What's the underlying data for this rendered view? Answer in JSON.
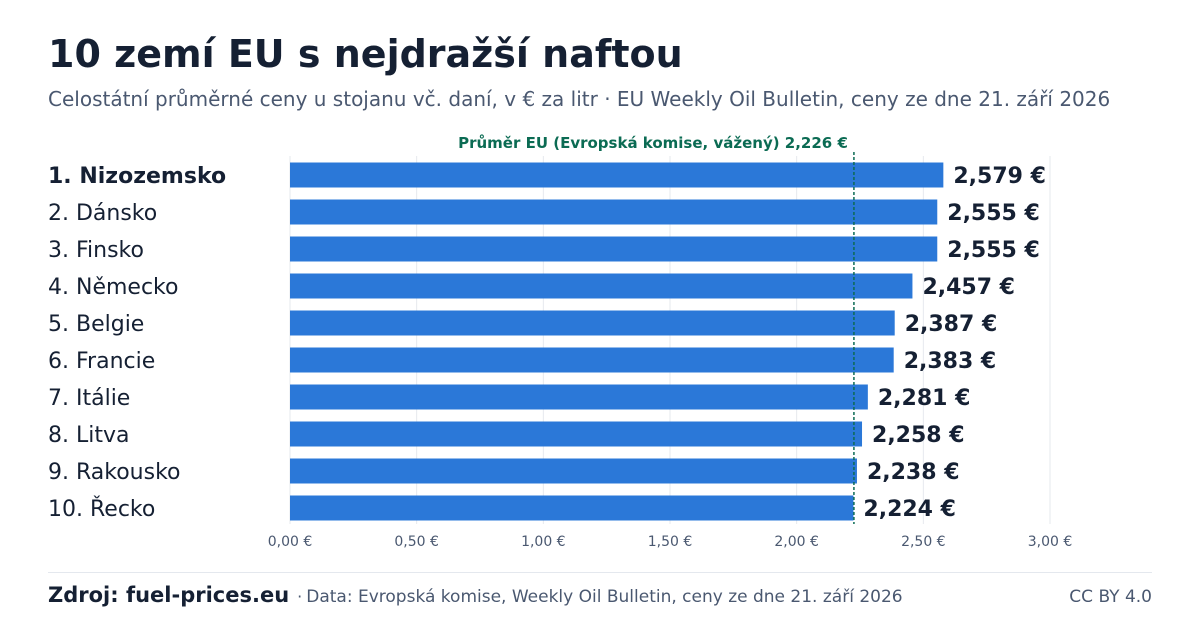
{
  "header": {
    "title": "10 zemí EU s nejdražší naftou",
    "subtitle": "Celostátní průměrné ceny u stojanu vč. daní, v € za litr · EU Weekly Oil Bulletin, ceny ze dne 21. září 2026"
  },
  "colors": {
    "bar": "#2b78d8",
    "average_line": "#0b6b53",
    "text": "#152033",
    "muted": "#4a5870",
    "grid": "#e6e9ee"
  },
  "chart_data": {
    "type": "bar",
    "orientation": "horizontal",
    "categories": [
      "1. Nizozemsko",
      "2. Dánsko",
      "3. Finsko",
      "4. Německo",
      "5. Belgie",
      "6. Francie",
      "7. Itálie",
      "8. Litva",
      "9. Rakousko",
      "10. Řecko"
    ],
    "values": [
      2.579,
      2.555,
      2.555,
      2.457,
      2.387,
      2.383,
      2.281,
      2.258,
      2.238,
      2.224
    ],
    "value_labels": [
      "2,579 €",
      "2,555 €",
      "2,555 €",
      "2,457 €",
      "2,387 €",
      "2,383 €",
      "2,281 €",
      "2,258 €",
      "2,238 €",
      "2,224 €"
    ],
    "xlim": [
      0,
      3
    ],
    "x_ticks": [
      0,
      0.5,
      1,
      1.5,
      2,
      2.5,
      3
    ],
    "x_tick_labels": [
      "0,00 €",
      "0,50 €",
      "1,00 €",
      "1,50 €",
      "2,00 €",
      "2,50 €",
      "3,00 €"
    ],
    "grid": true,
    "average": {
      "value": 2.226,
      "label": "Průměr EU (Evropská komise, vážený) 2,226 €"
    }
  },
  "footer": {
    "source_label": "Zdroj: fuel-prices.eu",
    "separator": "·",
    "data_note": "Data: Evropská komise, Weekly Oil Bulletin, ceny ze dne 21. září 2026",
    "license": "CC BY 4.0"
  }
}
